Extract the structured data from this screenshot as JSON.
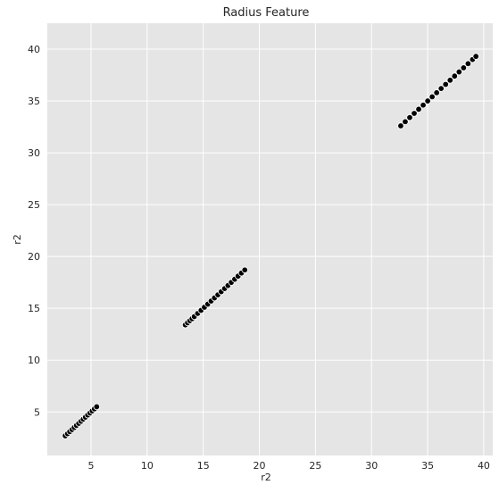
{
  "chart_data": {
    "type": "scatter",
    "title": "Radius Feature",
    "xlabel": "r2",
    "ylabel": "r2",
    "xlim": [
      1.1,
      40.8
    ],
    "ylim": [
      0.8,
      42.5
    ],
    "xticks": [
      5,
      10,
      15,
      20,
      25,
      30,
      35,
      40
    ],
    "yticks": [
      5,
      10,
      15,
      20,
      25,
      30,
      35,
      40
    ],
    "grid": true,
    "background": "#e5e5e5",
    "grid_color": "#ffffff",
    "point_color": "#000000",
    "series": [
      {
        "x": [
          2.7,
          2.9,
          3.1,
          3.3,
          3.5,
          3.7,
          3.9,
          4.1,
          4.3,
          4.5,
          4.7,
          4.9,
          5.1,
          5.3,
          5.5,
          13.4,
          13.6,
          13.8,
          14.0,
          14.2,
          14.5,
          14.8,
          15.1,
          15.4,
          15.7,
          16.0,
          16.3,
          16.6,
          16.9,
          17.2,
          17.5,
          17.8,
          18.1,
          18.4,
          18.7,
          32.6,
          33.0,
          33.4,
          33.8,
          34.2,
          34.6,
          35.0,
          35.4,
          35.8,
          36.2,
          36.6,
          37.0,
          37.4,
          37.8,
          38.2,
          38.6,
          39.0,
          39.3
        ],
        "y": [
          2.7,
          2.9,
          3.1,
          3.3,
          3.5,
          3.7,
          3.9,
          4.1,
          4.3,
          4.5,
          4.7,
          4.9,
          5.1,
          5.3,
          5.5,
          13.4,
          13.6,
          13.8,
          14.0,
          14.2,
          14.5,
          14.8,
          15.1,
          15.4,
          15.7,
          16.0,
          16.3,
          16.6,
          16.9,
          17.2,
          17.5,
          17.8,
          18.1,
          18.4,
          18.7,
          32.6,
          33.0,
          33.4,
          33.8,
          34.2,
          34.6,
          35.0,
          35.4,
          35.8,
          36.2,
          36.6,
          37.0,
          37.4,
          37.8,
          38.2,
          38.6,
          39.0,
          39.3
        ]
      }
    ]
  }
}
